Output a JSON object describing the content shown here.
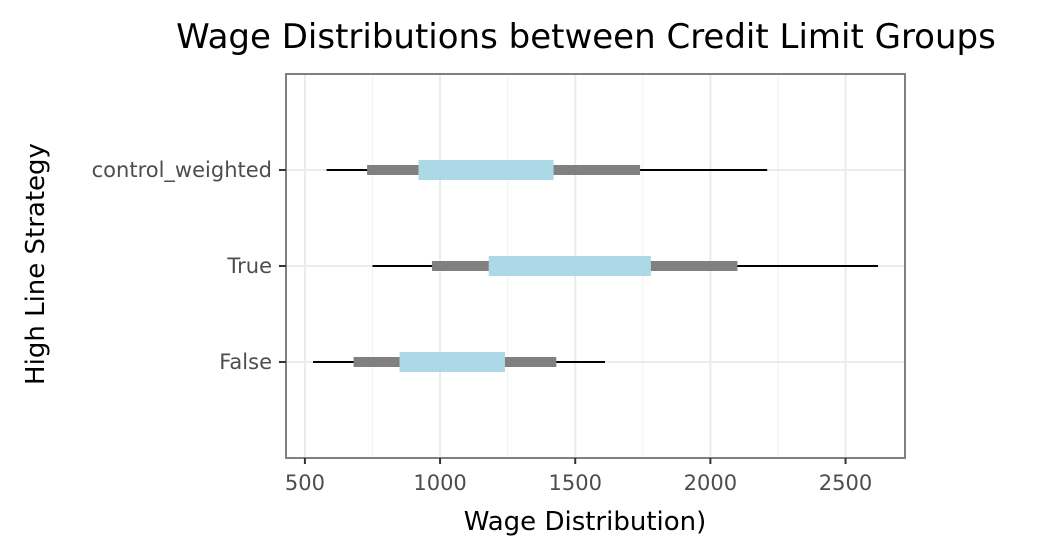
{
  "chart_data": {
    "type": "interval",
    "title": "Wage Distributions between Credit Limit Groups",
    "xlabel": "Wage Distribution)",
    "ylabel": "High Line Strategy",
    "xlim": [
      430,
      2720
    ],
    "x_ticks": [
      500,
      1000,
      1500,
      2000,
      2500
    ],
    "x_tick_labels": [
      "500",
      "1000",
      "1500",
      "2000",
      "2500"
    ],
    "grid": true,
    "categories": [
      "False",
      "True",
      "control_weighted"
    ],
    "series": [
      {
        "category": "False",
        "whisker_low": 530,
        "outer_low": 680,
        "inner_low": 850,
        "inner_high": 1240,
        "outer_high": 1430,
        "whisker_high": 1610
      },
      {
        "category": "True",
        "whisker_low": 750,
        "outer_low": 970,
        "inner_low": 1180,
        "inner_high": 1780,
        "outer_high": 2100,
        "whisker_high": 2620
      },
      {
        "category": "control_weighted",
        "whisker_low": 580,
        "outer_low": 730,
        "inner_low": 920,
        "inner_high": 1420,
        "outer_high": 1740,
        "whisker_high": 2210
      }
    ],
    "colors": {
      "whisker": "#000000",
      "outer": "#808080",
      "inner": "#add8e6",
      "panel_border": "#808080",
      "grid_major": "#ebebeb",
      "grid_minor": "#f5f5f5",
      "axis_text": "#4d4d4d"
    }
  }
}
